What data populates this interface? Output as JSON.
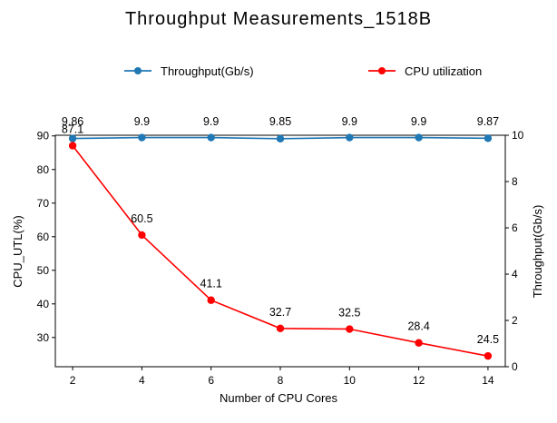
{
  "chart_data": {
    "type": "line",
    "title": "Throughput Measurements_1518B",
    "xlabel": "Number of CPU Cores",
    "ylabel_left": "CPU_UTL(%)",
    "ylabel_right": "Throughput(Gb/s)",
    "x": [
      2,
      4,
      6,
      8,
      10,
      12,
      14
    ],
    "xlim": [
      1.5,
      14.5
    ],
    "xticks": [
      "2",
      "4",
      "6",
      "8",
      "10",
      "12",
      "14"
    ],
    "ylim_left": [
      21.3,
      90.2
    ],
    "yticks_left": [
      "30",
      "40",
      "50",
      "60",
      "70",
      "80",
      "90"
    ],
    "ylim_right": [
      0,
      10
    ],
    "yticks_right": [
      "0",
      "2",
      "4",
      "6",
      "8",
      "10"
    ],
    "legend_position": "top",
    "series": [
      {
        "name": "Throughput(Gb/s)",
        "axis": "right",
        "color": "#1f77b4",
        "values": [
          9.86,
          9.9,
          9.9,
          9.85,
          9.9,
          9.9,
          9.87
        ],
        "labels": [
          "9.86",
          "9.9",
          "9.9",
          "9.85",
          "9.9",
          "9.9",
          "9.87"
        ]
      },
      {
        "name": "CPU utilization",
        "axis": "left",
        "color": "#ff0000",
        "values": [
          87.1,
          60.5,
          41.1,
          32.7,
          32.5,
          28.4,
          24.5
        ],
        "labels": [
          "87.1",
          "60.5",
          "41.1",
          "32.7",
          "32.5",
          "28.4",
          "24.5"
        ]
      }
    ]
  }
}
